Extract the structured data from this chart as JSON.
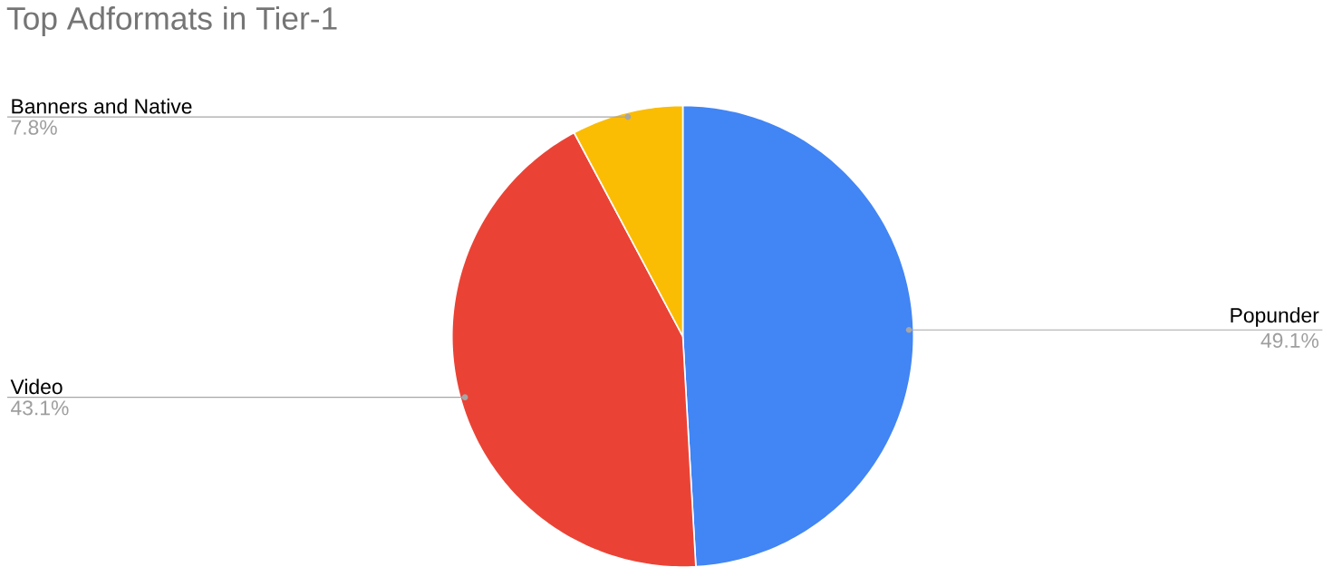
{
  "chart_data": {
    "type": "pie",
    "title": "Top Adformats in Tier-1",
    "categories": [
      "Popunder",
      "Video",
      "Banners and Native"
    ],
    "values": [
      49.1,
      43.1,
      7.8
    ],
    "value_labels": [
      "49.1%",
      "43.1%",
      "7.8%"
    ],
    "colors": [
      "#4285f4",
      "#ea4335",
      "#fbbc04"
    ]
  }
}
